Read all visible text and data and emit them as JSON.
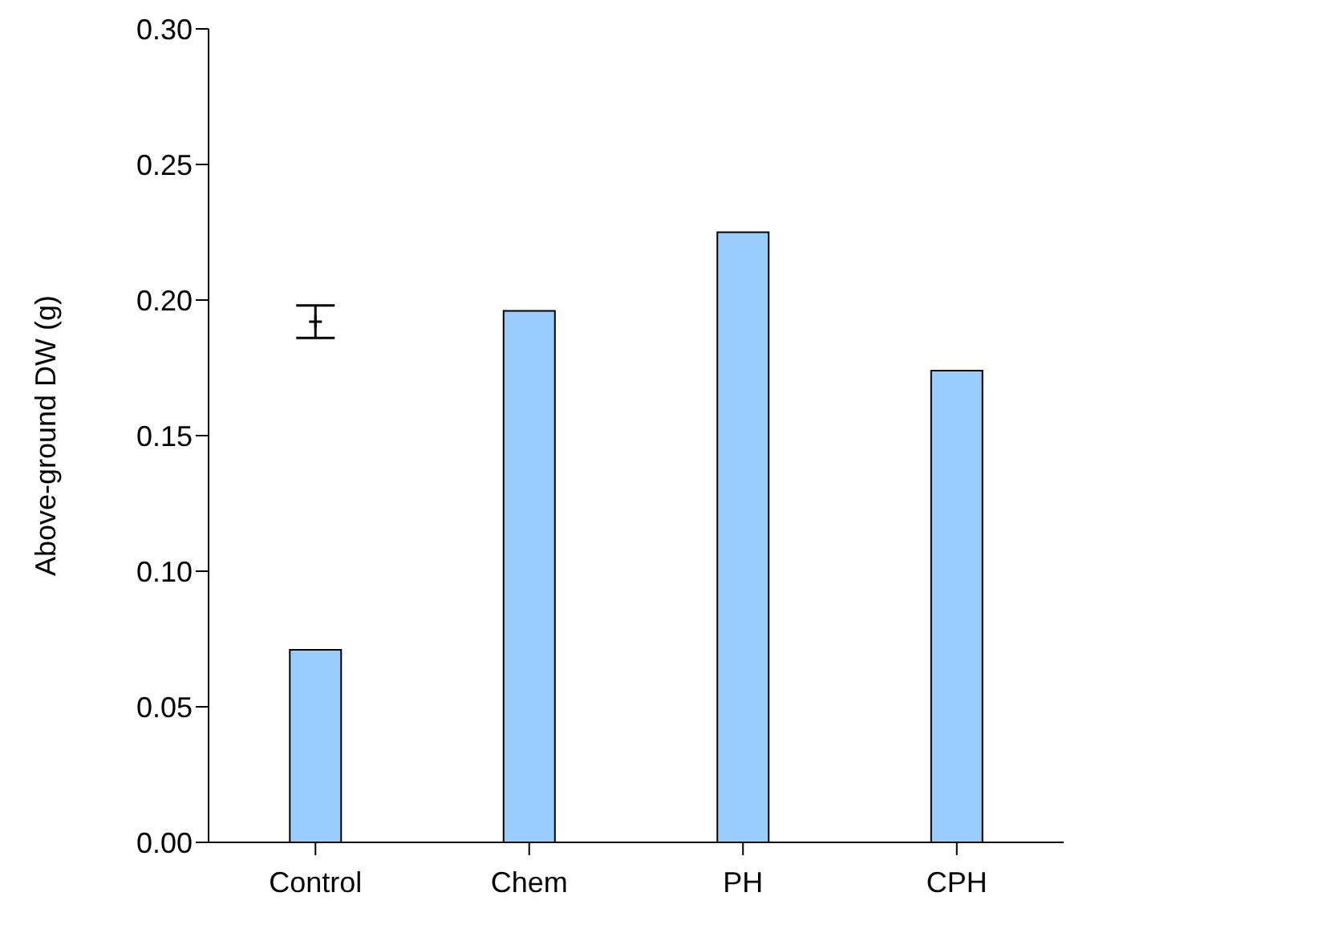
{
  "chart_data": {
    "type": "bar",
    "ylabel": "Above-ground DW (g)",
    "categories": [
      "Control",
      "Chem",
      "PH",
      "CPH"
    ],
    "series": [
      {
        "type": "bar",
        "color": "#99ccff",
        "values": [
          0.071,
          0.196,
          0.225,
          0.174
        ]
      },
      {
        "type": "scatter",
        "color": "#000000",
        "x": [
          "Control"
        ],
        "values": [
          0.192
        ],
        "errors": [
          0.006
        ],
        "marker": "cross"
      }
    ],
    "ylim": [
      0,
      0.3
    ],
    "yticks": [
      {
        "value": 0,
        "label": "0.00"
      },
      {
        "value": 0.05,
        "label": "0.05"
      },
      {
        "value": 0.1,
        "label": "0.10"
      },
      {
        "value": 0.15,
        "label": "0.15"
      },
      {
        "value": 0.2,
        "label": "0.20"
      },
      {
        "value": 0.25,
        "label": "0.25"
      },
      {
        "value": 0.3,
        "label": "0.30"
      }
    ],
    "grid": false,
    "legend": false
  }
}
